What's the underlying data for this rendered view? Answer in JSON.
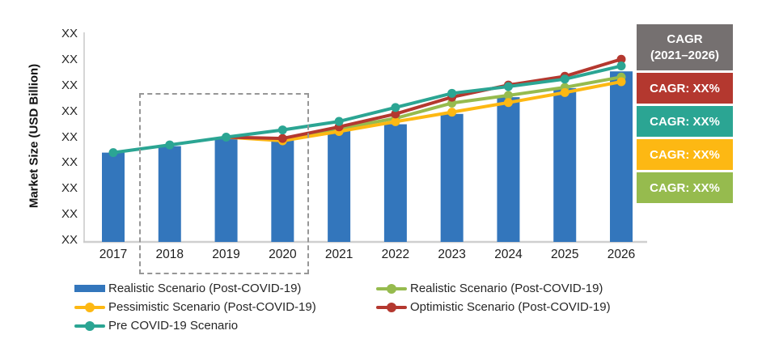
{
  "chart_data": {
    "type": "combo-bar-line",
    "title": "",
    "xlabel": "",
    "ylabel": "Market Size (USD Billion)",
    "categories": [
      "2017",
      "2018",
      "2019",
      "2020",
      "2021",
      "2022",
      "2023",
      "2024",
      "2025",
      "2026"
    ],
    "y_tick_labels": [
      "XX",
      "XX",
      "XX",
      "XX",
      "XX",
      "XX",
      "XX",
      "XX",
      "XX"
    ],
    "ylim": [
      0,
      8
    ],
    "grid": "off",
    "legend_position": "bottom",
    "value_note": "Source chart masks all values as XX; series values below are estimated in y-axis tick units read from pixel positions.",
    "bar_series": {
      "name": "Realistic Scenario (Post-COVID-19)",
      "color": "#3376BC",
      "values": [
        3.4,
        3.65,
        3.92,
        3.89,
        4.3,
        4.5,
        4.9,
        5.55,
        5.9,
        6.55
      ]
    },
    "line_series": [
      {
        "name": "Realistic Scenario (Post-COVID-19)",
        "color": "#96BB4E",
        "marker_from": 4,
        "values": [
          null,
          null,
          null,
          3.9,
          4.33,
          4.73,
          5.32,
          5.62,
          5.93,
          6.33
        ]
      },
      {
        "name": "Pessimistic Scenario (Post-COVID-19)",
        "color": "#FDB813",
        "marker_from": 3,
        "values": [
          null,
          null,
          4.0,
          3.86,
          4.22,
          4.6,
          4.97,
          5.34,
          5.73,
          6.15
        ]
      },
      {
        "name": "Optimistic Scenario (Post-COVID-19)",
        "color": "#B4382F",
        "marker_from": 3,
        "values": [
          null,
          null,
          4.0,
          3.95,
          4.4,
          4.9,
          5.55,
          6.02,
          6.36,
          7.02
        ]
      },
      {
        "name": "Pre COVID-19 Scenario",
        "color": "#2BA593",
        "marker_from": 0,
        "values": [
          3.4,
          3.7,
          4.0,
          4.28,
          4.61,
          5.15,
          5.7,
          5.96,
          6.25,
          6.76
        ]
      }
    ],
    "highlight_box": {
      "from": "2018",
      "to": "2020"
    }
  },
  "legend": {
    "columns": [
      {
        "items": [
          {
            "swatch": "bar",
            "color": "#3376BC",
            "label": "Realistic Scenario (Post-COVID-19)"
          },
          {
            "swatch": "line",
            "color": "#FDB813",
            "label": "Pessimistic Scenario (Post-COVID-19)"
          },
          {
            "swatch": "line",
            "color": "#2BA593",
            "label": "Pre COVID-19 Scenario"
          }
        ]
      },
      {
        "items": [
          {
            "swatch": "line",
            "color": "#96BB4E",
            "label": "Realistic Scenario (Post-COVID-19)"
          },
          {
            "swatch": "line",
            "color": "#B4382F",
            "label": "Optimistic Scenario (Post-COVID-19)"
          }
        ]
      }
    ]
  },
  "cagr_panel": {
    "header": {
      "line1": "CAGR",
      "line2": "(2021–2026)",
      "color": "#757070"
    },
    "badges": [
      {
        "label": "CAGR: XX%",
        "color": "#B4382F",
        "series": "optimistic"
      },
      {
        "label": "CAGR: XX%",
        "color": "#2BA593",
        "series": "pre-covid"
      },
      {
        "label": "CAGR: XX%",
        "color": "#FDB813",
        "series": "pessimistic"
      },
      {
        "label": "CAGR: XX%",
        "color": "#96BB4E",
        "series": "realistic"
      }
    ]
  }
}
